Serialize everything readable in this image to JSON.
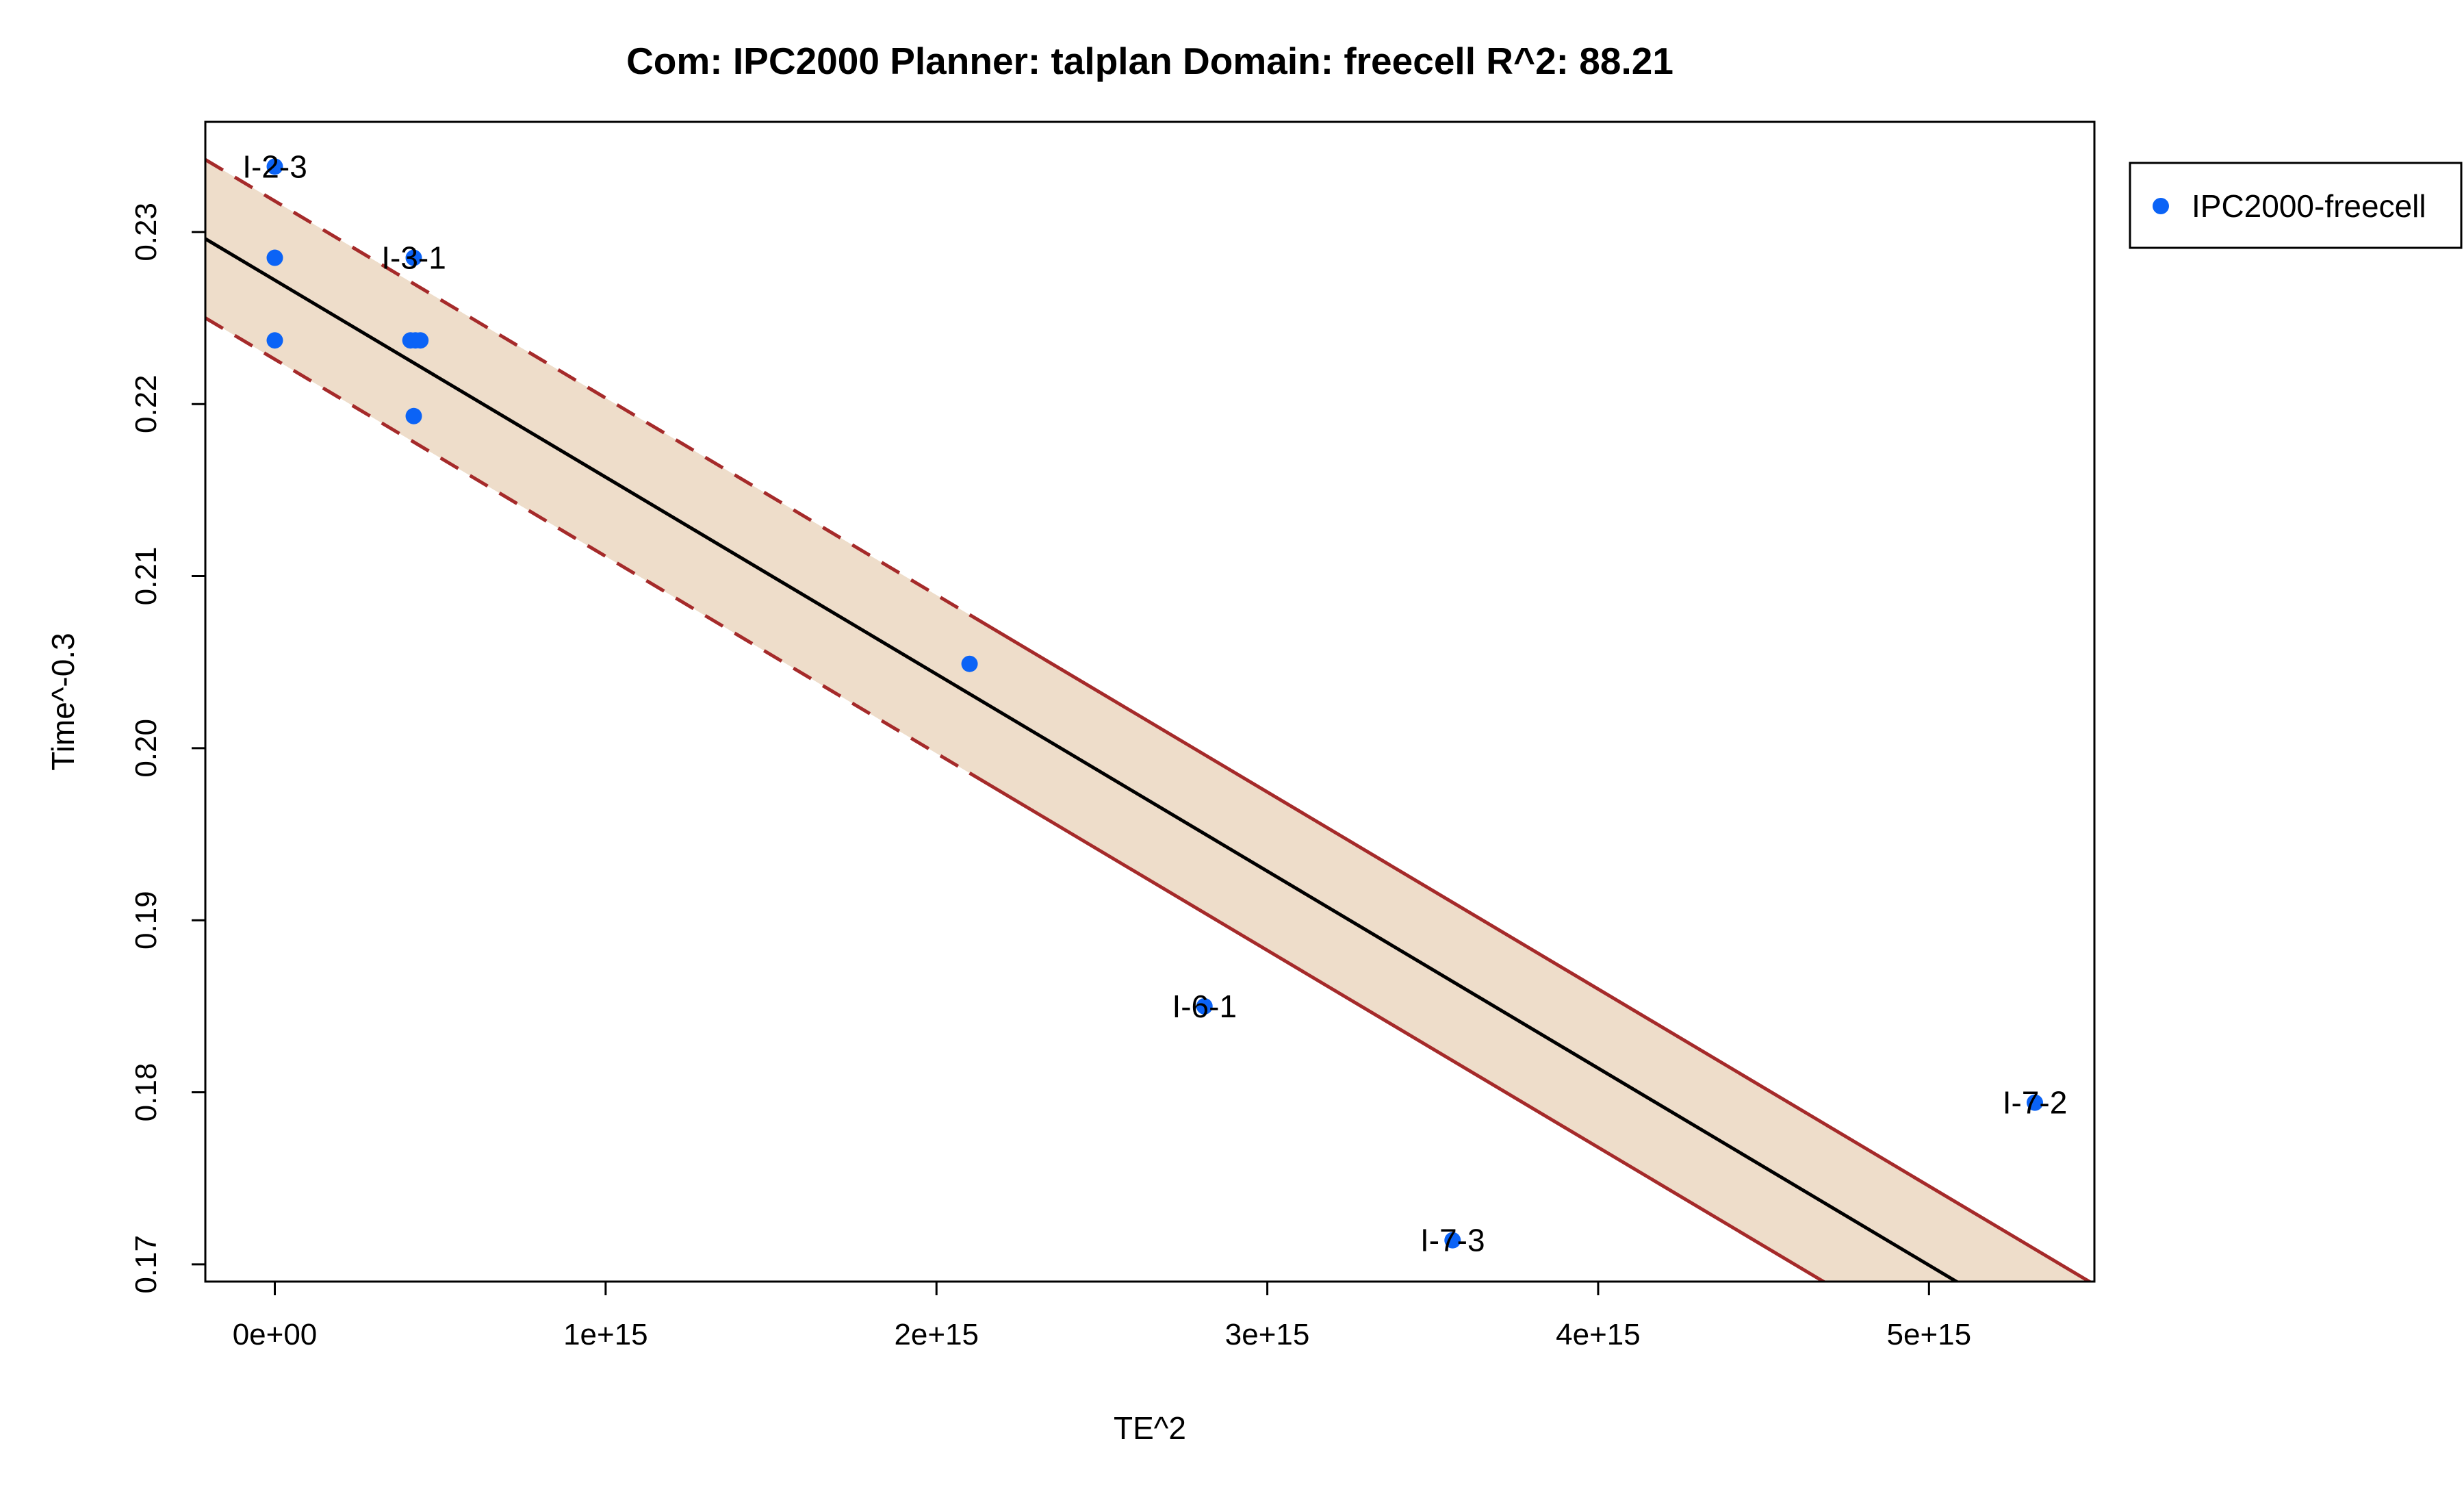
{
  "chart_data": {
    "type": "scatter",
    "title": "Com: IPC2000 Planner: talplan Domain: freecell R^2: 88.21",
    "xlabel": "TE^2",
    "ylabel": "Time^-0.3",
    "xlim": [
      -210000000000000.0,
      5500000000000000.0
    ],
    "ylim": [
      0.169,
      0.2364
    ],
    "x_ticks": [
      0,
      1000000000000000.0,
      2000000000000000.0,
      3000000000000000.0,
      4000000000000000.0,
      5000000000000000.0
    ],
    "x_tick_labels": [
      "0e+00",
      "1e+15",
      "2e+15",
      "3e+15",
      "4e+15",
      "5e+15"
    ],
    "y_ticks": [
      0.17,
      0.18,
      0.19,
      0.2,
      0.21,
      0.22,
      0.23
    ],
    "y_tick_labels": [
      "0.17",
      "0.18",
      "0.19",
      "0.20",
      "0.21",
      "0.22",
      "0.23"
    ],
    "grid": false,
    "legend_position": "top-right, outside plot",
    "series": [
      {
        "name": "IPC2000-freecell",
        "color": "#0b63f6",
        "points": [
          {
            "x": 0,
            "y": 0.2338,
            "label": "I-2-3"
          },
          {
            "x": 0,
            "y": 0.2285,
            "label": ""
          },
          {
            "x": 0,
            "y": 0.2237,
            "label": ""
          },
          {
            "x": 420000000000000.0,
            "y": 0.2285,
            "label": "I-3-1"
          },
          {
            "x": 410000000000000.0,
            "y": 0.2237,
            "label": ""
          },
          {
            "x": 425000000000000.0,
            "y": 0.2237,
            "label": ""
          },
          {
            "x": 440000000000000.0,
            "y": 0.2237,
            "label": ""
          },
          {
            "x": 420000000000000.0,
            "y": 0.2193,
            "label": ""
          },
          {
            "x": 2100000000000000.0,
            "y": 0.2049,
            "label": ""
          },
          {
            "x": 2810000000000000.0,
            "y": 0.185,
            "label": "I-6-1"
          },
          {
            "x": 3560000000000000.0,
            "y": 0.1714,
            "label": "I-7-3"
          },
          {
            "x": 5320000000000000.0,
            "y": 0.1794,
            "label": "I-7-2"
          }
        ]
      }
    ],
    "fit": {
      "intercept": 0.2272,
      "slope": -1.145e-17,
      "band_halfwidth": 0.0046,
      "line_color": "#000000",
      "band_color": "#a52a2a",
      "band_fill": "#eeddca"
    }
  }
}
